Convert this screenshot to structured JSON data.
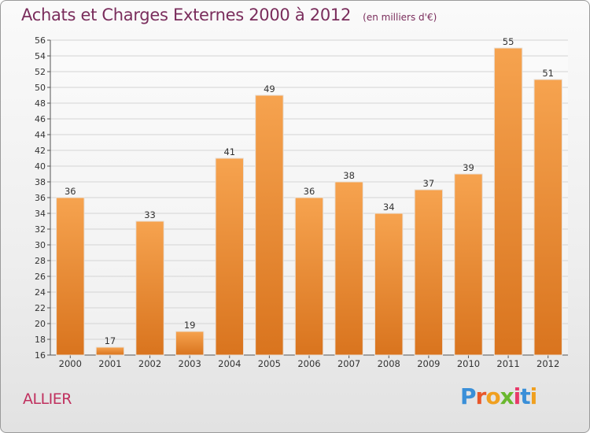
{
  "header": {
    "title": "Achats et Charges Externes 2000 à 2012",
    "subtitle": "(en milliers d'€)"
  },
  "footer": {
    "region": "ALLIER",
    "logo_text": "Proxiti",
    "logo_colors": [
      "#3a8fd8",
      "#e8572a",
      "#f0a020",
      "#6ab82f",
      "#e83a6a",
      "#3a8fd8",
      "#f0a020"
    ]
  },
  "colors": {
    "bar_top": "#f6a34f",
    "bar_bottom": "#d9741e",
    "title": "#7a2d5c",
    "region": "#c0305e"
  },
  "chart_data": {
    "type": "bar",
    "title": "Achats et Charges Externes 2000 à 2012",
    "subtitle": "(en milliers d'€)",
    "categories": [
      "2000",
      "2001",
      "2002",
      "2003",
      "2004",
      "2005",
      "2006",
      "2007",
      "2008",
      "2009",
      "2010",
      "2011",
      "2012"
    ],
    "values": [
      36,
      17,
      33,
      19,
      41,
      49,
      36,
      38,
      34,
      37,
      39,
      55,
      51
    ],
    "ylim": [
      16,
      56
    ],
    "ytick_step": 2,
    "grid": true,
    "xlabel": "",
    "ylabel": ""
  }
}
